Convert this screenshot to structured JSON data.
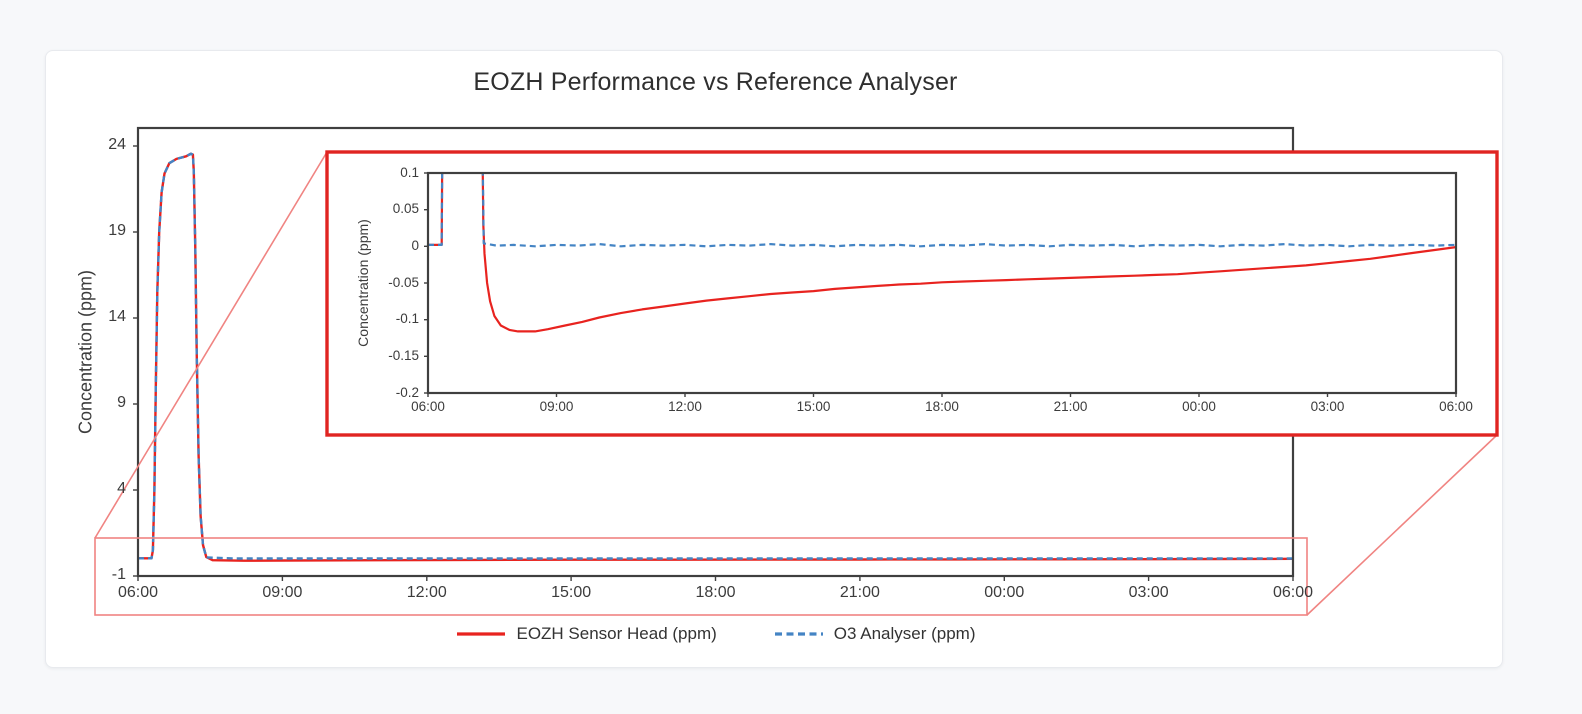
{
  "page": {
    "background": "#f7f8fa",
    "card_background": "#ffffff"
  },
  "title": "EOZH Performance vs Reference Analyser",
  "colors": {
    "eozh_red": "#e8231f",
    "o3_blue": "#4484c4",
    "frame_gray": "#3f3f3f",
    "callout_red": "#e02421",
    "callout_light_red": "#f08482",
    "text": "#3c3c3c"
  },
  "legend": {
    "position": "bottom-center",
    "items": [
      {
        "label": "EOZH Sensor Head (ppm)",
        "color": "#e8231f",
        "style": "solid"
      },
      {
        "label": "O3 Analyser (ppm)",
        "color": "#4484c4",
        "style": "dashed"
      }
    ]
  },
  "chart_data": [
    {
      "type": "line",
      "id": "main",
      "title": "EOZH Performance vs Reference Analyser",
      "xlabel": "",
      "ylabel": "Concentration (ppm)",
      "grid": false,
      "legend_position": "bottom",
      "xlim_hours": [
        6,
        30
      ],
      "ylim": [
        -1,
        24
      ],
      "x_tick_hours": [
        6,
        9,
        12,
        15,
        18,
        21,
        24,
        27,
        30
      ],
      "x_tick_labels": [
        "06:00",
        "09:00",
        "12:00",
        "15:00",
        "18:00",
        "21:00",
        "00:00",
        "03:00",
        "06:00"
      ],
      "y_tick_values": [
        24,
        19,
        14,
        9,
        4,
        -1
      ],
      "y_tick_labels": [
        "24",
        "19",
        "14",
        "9",
        "4",
        "-1"
      ],
      "series": [
        {
          "name": "EOZH Sensor Head (ppm)",
          "color": "#e8231f",
          "dash": "solid",
          "points": [
            [
              6,
              0.03
            ],
            [
              6.28,
              0.03
            ],
            [
              6.31,
              0.5
            ],
            [
              6.34,
              4
            ],
            [
              6.37,
              10
            ],
            [
              6.4,
              15.5
            ],
            [
              6.44,
              19
            ],
            [
              6.49,
              21.3
            ],
            [
              6.55,
              22.4
            ],
            [
              6.65,
              23.0
            ],
            [
              6.8,
              23.25
            ],
            [
              7.0,
              23.4
            ],
            [
              7.1,
              23.55
            ],
            [
              7.14,
              23.5
            ],
            [
              7.16,
              22.5
            ],
            [
              7.19,
              18
            ],
            [
              7.22,
              12
            ],
            [
              7.26,
              6
            ],
            [
              7.3,
              2.5
            ],
            [
              7.35,
              0.8
            ],
            [
              7.42,
              0.1
            ],
            [
              7.55,
              -0.08
            ],
            [
              8.2,
              -0.11
            ],
            [
              9,
              -0.1
            ],
            [
              11,
              -0.08
            ],
            [
              13,
              -0.065
            ],
            [
              15,
              -0.055
            ],
            [
              17,
              -0.05
            ],
            [
              19,
              -0.045
            ],
            [
              21,
              -0.04
            ],
            [
              23,
              -0.037
            ],
            [
              25,
              -0.031
            ],
            [
              27,
              -0.022
            ],
            [
              28.5,
              -0.012
            ],
            [
              29.5,
              -0.004
            ],
            [
              30,
              0
            ]
          ]
        },
        {
          "name": "O3 Analyser (ppm)",
          "color": "#4484c4",
          "dash": "dashed",
          "points": [
            [
              6,
              0.03
            ],
            [
              6.28,
              0.03
            ],
            [
              6.31,
              0.5
            ],
            [
              6.34,
              4
            ],
            [
              6.37,
              10
            ],
            [
              6.4,
              15.5
            ],
            [
              6.44,
              19
            ],
            [
              6.49,
              21.3
            ],
            [
              6.55,
              22.4
            ],
            [
              6.65,
              23.0
            ],
            [
              6.8,
              23.25
            ],
            [
              7.0,
              23.4
            ],
            [
              7.1,
              23.55
            ],
            [
              7.14,
              23.5
            ],
            [
              7.16,
              22.5
            ],
            [
              7.19,
              18
            ],
            [
              7.22,
              12
            ],
            [
              7.26,
              6
            ],
            [
              7.3,
              2.5
            ],
            [
              7.35,
              0.8
            ],
            [
              7.42,
              0.08
            ],
            [
              8,
              0.02
            ],
            [
              12,
              0.02
            ],
            [
              16,
              0.02
            ],
            [
              20,
              0.02
            ],
            [
              24,
              0.02
            ],
            [
              27,
              0.02
            ],
            [
              30,
              0.02
            ]
          ]
        }
      ]
    },
    {
      "type": "line",
      "id": "inset-zoom",
      "title": "",
      "xlabel": "",
      "ylabel": "Concentration (ppm)",
      "grid": false,
      "legend_position": "none",
      "xlim_hours": [
        6,
        30
      ],
      "ylim": [
        -0.2,
        0.1
      ],
      "x_tick_hours": [
        6,
        9,
        12,
        15,
        18,
        21,
        24,
        27,
        30
      ],
      "x_tick_labels": [
        "06:00",
        "09:00",
        "12:00",
        "15:00",
        "18:00",
        "21:00",
        "00:00",
        "03:00",
        "06:00"
      ],
      "y_tick_values": [
        0.1,
        0.05,
        0,
        -0.05,
        -0.1,
        -0.15,
        -0.2
      ],
      "y_tick_labels": [
        "0.1",
        "0.05",
        "0",
        "-0.05",
        "-0.1",
        "-0.15",
        "-0.2"
      ],
      "series": [
        {
          "name": "EOZH Sensor Head (ppm)",
          "color": "#e8231f",
          "dash": "solid",
          "points": [
            [
              6,
              0.002
            ],
            [
              6.32,
              0.002
            ],
            [
              6.34,
              0.2
            ],
            null,
            [
              7.26,
              0.2
            ],
            [
              7.29,
              0.03
            ],
            [
              7.32,
              -0.01
            ],
            [
              7.38,
              -0.05
            ],
            [
              7.45,
              -0.075
            ],
            [
              7.55,
              -0.095
            ],
            [
              7.7,
              -0.108
            ],
            [
              7.9,
              -0.114
            ],
            [
              8.1,
              -0.116
            ],
            [
              8.5,
              -0.116
            ],
            [
              8.8,
              -0.113
            ],
            [
              9.2,
              -0.108
            ],
            [
              9.6,
              -0.103
            ],
            [
              10,
              -0.097
            ],
            [
              10.5,
              -0.091
            ],
            [
              11,
              -0.086
            ],
            [
              11.5,
              -0.082
            ],
            [
              12,
              -0.078
            ],
            [
              12.5,
              -0.074
            ],
            [
              13,
              -0.071
            ],
            [
              13.5,
              -0.068
            ],
            [
              14,
              -0.065
            ],
            [
              14.5,
              -0.063
            ],
            [
              15,
              -0.061
            ],
            [
              15.5,
              -0.058
            ],
            [
              16,
              -0.056
            ],
            [
              16.5,
              -0.054
            ],
            [
              17,
              -0.052
            ],
            [
              17.5,
              -0.051
            ],
            [
              18,
              -0.049
            ],
            [
              18.5,
              -0.048
            ],
            [
              19,
              -0.047
            ],
            [
              19.5,
              -0.046
            ],
            [
              20,
              -0.045
            ],
            [
              20.5,
              -0.044
            ],
            [
              21,
              -0.043
            ],
            [
              21.5,
              -0.042
            ],
            [
              22,
              -0.041
            ],
            [
              22.5,
              -0.04
            ],
            [
              23,
              -0.039
            ],
            [
              23.5,
              -0.038
            ],
            [
              24,
              -0.036
            ],
            [
              24.5,
              -0.034
            ],
            [
              25,
              -0.032
            ],
            [
              25.5,
              -0.03
            ],
            [
              26,
              -0.028
            ],
            [
              26.5,
              -0.026
            ],
            [
              27,
              -0.023
            ],
            [
              27.5,
              -0.02
            ],
            [
              28,
              -0.017
            ],
            [
              28.5,
              -0.013
            ],
            [
              29,
              -0.009
            ],
            [
              29.5,
              -0.005
            ],
            [
              30,
              -0.001
            ]
          ]
        },
        {
          "name": "O3 Analyser (ppm)",
          "color": "#4484c4",
          "dash": "dashed",
          "points": [
            [
              6,
              0.002
            ],
            [
              6.32,
              0.002
            ],
            [
              6.34,
              0.2
            ],
            null,
            [
              7.26,
              0.2
            ],
            [
              7.3,
              0.004
            ],
            [
              7.6,
              0.001
            ],
            [
              8,
              0.002
            ],
            [
              8.5,
              0.0
            ],
            [
              9,
              0.002
            ],
            [
              9.5,
              0.001
            ],
            [
              10,
              0.003
            ],
            [
              10.5,
              0.0
            ],
            [
              11,
              0.002
            ],
            [
              11.5,
              0.001
            ],
            [
              12,
              0.002
            ],
            [
              12.5,
              0.0
            ],
            [
              13,
              0.002
            ],
            [
              13.5,
              0.001
            ],
            [
              14,
              0.003
            ],
            [
              14.5,
              0.001
            ],
            [
              15,
              0.002
            ],
            [
              15.5,
              0.0
            ],
            [
              16,
              0.002
            ],
            [
              16.5,
              0.001
            ],
            [
              17,
              0.002
            ],
            [
              17.5,
              0.0
            ],
            [
              18,
              0.002
            ],
            [
              18.5,
              0.001
            ],
            [
              19,
              0.003
            ],
            [
              19.5,
              0.001
            ],
            [
              20,
              0.002
            ],
            [
              20.5,
              0.0
            ],
            [
              21,
              0.002
            ],
            [
              21.5,
              0.001
            ],
            [
              22,
              0.002
            ],
            [
              22.5,
              0.0
            ],
            [
              23,
              0.002
            ],
            [
              23.5,
              0.001
            ],
            [
              24,
              0.002
            ],
            [
              24.5,
              0.0
            ],
            [
              25,
              0.002
            ],
            [
              25.5,
              0.001
            ],
            [
              26,
              0.003
            ],
            [
              26.5,
              0.001
            ],
            [
              27,
              0.002
            ],
            [
              27.5,
              0.0
            ],
            [
              28,
              0.002
            ],
            [
              28.5,
              0.001
            ],
            [
              29,
              0.002
            ],
            [
              29.5,
              0.001
            ],
            [
              30,
              0.002
            ]
          ]
        }
      ]
    }
  ]
}
